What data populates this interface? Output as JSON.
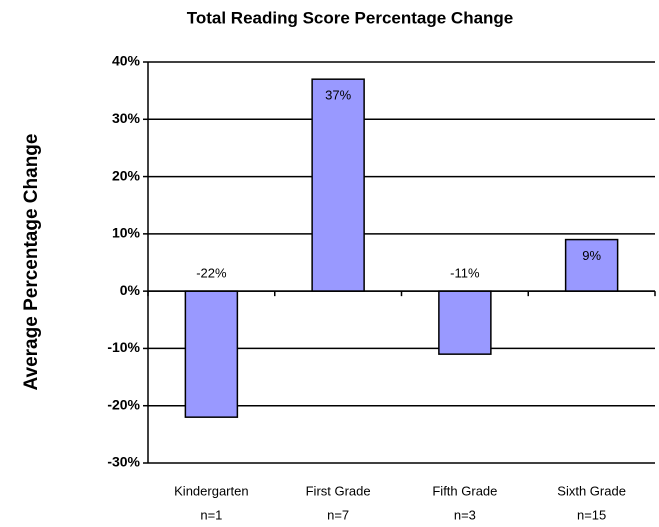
{
  "chart_data": {
    "type": "bar",
    "title": "Total Reading Score Percentage Change",
    "y_label": "Average Percentage Change",
    "categories": [
      "Kindergarten",
      "First Grade",
      "Fifth Grade",
      "Sixth Grade"
    ],
    "sample_sizes": [
      "n=1",
      "n=7",
      "n=3",
      "n=15"
    ],
    "values": [
      -22,
      37,
      -11,
      9
    ],
    "value_labels": [
      "-22%",
      "37%",
      "-11%",
      "9%"
    ],
    "color": "#9999ff",
    "ylim": [
      -30,
      40
    ],
    "yticks": [
      {
        "value": -30,
        "label": "-30%"
      },
      {
        "value": -20,
        "label": "-20%"
      },
      {
        "value": -10,
        "label": "-10%"
      },
      {
        "value": 0,
        "label": "0%"
      },
      {
        "value": 10,
        "label": "10%"
      },
      {
        "value": 20,
        "label": "20%"
      },
      {
        "value": 30,
        "label": "30%"
      },
      {
        "value": 40,
        "label": "40%"
      }
    ],
    "grid": true
  }
}
